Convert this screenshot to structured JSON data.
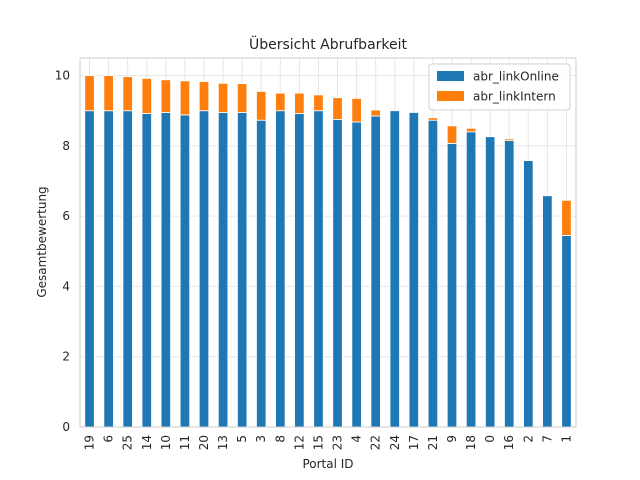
{
  "chart_data": {
    "type": "bar",
    "stacked": true,
    "title": "Übersicht Abrufbarkeit",
    "xlabel": "Portal ID",
    "ylabel": "Gesamtbewertung",
    "categories": [
      "19",
      "6",
      "25",
      "14",
      "10",
      "11",
      "20",
      "13",
      "5",
      "3",
      "8",
      "12",
      "15",
      "23",
      "4",
      "22",
      "24",
      "17",
      "21",
      "9",
      "18",
      "0",
      "16",
      "2",
      "7",
      "1"
    ],
    "series": [
      {
        "name": "abr_linkOnline",
        "color": "#1f77b4",
        "values": [
          9.0,
          9.0,
          9.0,
          8.92,
          8.95,
          8.88,
          9.0,
          8.95,
          8.95,
          8.73,
          9.0,
          8.92,
          9.0,
          8.75,
          8.68,
          8.85,
          9.0,
          8.95,
          8.73,
          8.07,
          8.4,
          8.26,
          8.15,
          7.58,
          6.58,
          5.45
        ]
      },
      {
        "name": "abr_linkIntern",
        "color": "#ff7f0e",
        "values": [
          1.0,
          1.0,
          0.97,
          1.0,
          0.93,
          0.97,
          0.83,
          0.83,
          0.82,
          0.82,
          0.5,
          0.58,
          0.45,
          0.62,
          0.67,
          0.17,
          0.0,
          0.0,
          0.07,
          0.5,
          0.1,
          0.0,
          0.05,
          0.0,
          0.0,
          1.0
        ]
      }
    ],
    "ylim": [
      0,
      10.5
    ],
    "yticks": [
      0,
      2,
      4,
      6,
      8,
      10
    ],
    "grid": true,
    "legend_position": "upper right"
  }
}
